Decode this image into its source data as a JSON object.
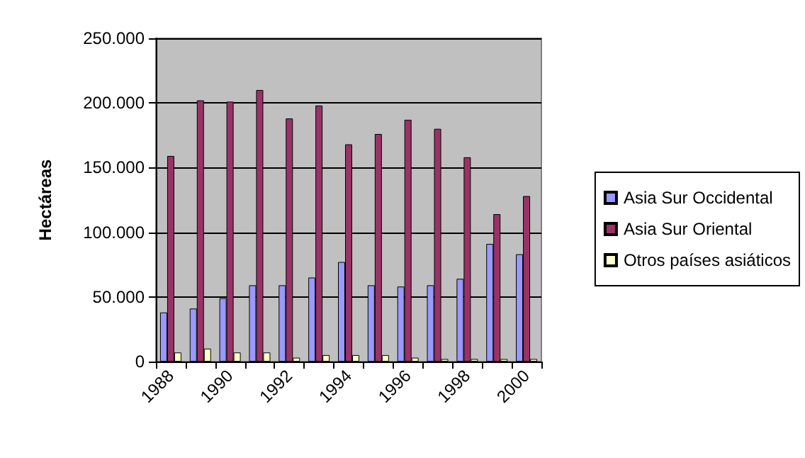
{
  "chart_data": {
    "type": "bar",
    "ylabel": "Hectáreas",
    "categories": [
      "1988",
      null,
      "1990",
      null,
      "1992",
      null,
      "1994",
      null,
      "1996",
      null,
      "1998",
      null,
      "2000"
    ],
    "series": [
      {
        "name": "Asia Sur Occidental",
        "color": "#9999ff",
        "values": [
          38000,
          41000,
          49000,
          59000,
          59000,
          65000,
          77000,
          59000,
          58000,
          59000,
          64000,
          91000,
          83000
        ]
      },
      {
        "name": "Asia Sur Oriental",
        "color": "#993366",
        "values": [
          159000,
          202000,
          201000,
          210000,
          188000,
          198000,
          168000,
          176000,
          187000,
          180000,
          158000,
          114000,
          128000
        ]
      },
      {
        "name": "Otros países asiáticos",
        "color": "#ffffcc",
        "values": [
          7000,
          10000,
          7000,
          7000,
          3000,
          5000,
          5000,
          5000,
          3000,
          2000,
          2000,
          2000,
          2000
        ]
      }
    ],
    "ylim": [
      0,
      250000
    ],
    "yticks": [
      0,
      {
        "value": 50000,
        "label": "50.000"
      },
      {
        "value": 100000,
        "label": "100.000"
      },
      {
        "value": 150000,
        "label": "150.000"
      },
      {
        "value": 200000,
        "label": "200.000"
      },
      {
        "value": 250000,
        "label": "250.000"
      }
    ],
    "grid": "y",
    "legend": "right"
  }
}
